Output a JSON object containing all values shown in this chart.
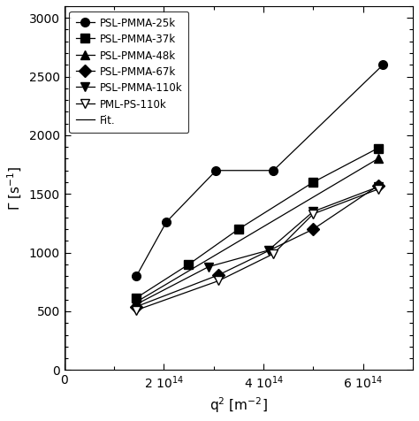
{
  "title": "",
  "xlabel": "q$^2$ [m$^{-2}$]",
  "ylabel": "$\\Gamma$ [s$^{-1}$]",
  "xlim": [
    0,
    700000000000000.0
  ],
  "ylim": [
    0,
    3100
  ],
  "series": [
    {
      "label": "PSL-PMMA-25k",
      "marker": "o",
      "open": false,
      "x": [
        145000000000000.0,
        205000000000000.0,
        305000000000000.0,
        420000000000000.0,
        640000000000000.0
      ],
      "y": [
        800,
        1260,
        1700,
        1700,
        2600
      ],
      "slope": 4050
    },
    {
      "label": "PSL-PMMA-37k",
      "marker": "s",
      "open": false,
      "x": [
        145000000000000.0,
        250000000000000.0,
        350000000000000.0,
        500000000000000.0,
        630000000000000.0
      ],
      "y": [
        615,
        900,
        1200,
        1600,
        1890
      ],
      "slope": 2950
    },
    {
      "label": "PSL-PMMA-48k",
      "marker": "^",
      "open": false,
      "x": [
        145000000000000.0,
        630000000000000.0
      ],
      "y": [
        580,
        1800
      ],
      "slope": 2820
    },
    {
      "label": "PSL-PMMA-67k",
      "marker": "D",
      "open": false,
      "x": [
        145000000000000.0,
        310000000000000.0,
        500000000000000.0,
        630000000000000.0
      ],
      "y": [
        540,
        810,
        1200,
        1570
      ],
      "slope": 2480
    },
    {
      "label": "PSL-PMMA-110k",
      "marker": "v",
      "open": false,
      "x": [
        145000000000000.0,
        290000000000000.0,
        410000000000000.0,
        500000000000000.0,
        630000000000000.0
      ],
      "y": [
        560,
        880,
        1020,
        1350,
        1560
      ],
      "slope": 2540
    },
    {
      "label": "PML-PS-110k",
      "marker": "v",
      "open": true,
      "x": [
        145000000000000.0,
        310000000000000.0,
        420000000000000.0,
        500000000000000.0,
        630000000000000.0
      ],
      "y": [
        510,
        760,
        990,
        1330,
        1540
      ],
      "slope": 2440
    }
  ],
  "background_color": "#ffffff",
  "legend_loc": "upper left"
}
